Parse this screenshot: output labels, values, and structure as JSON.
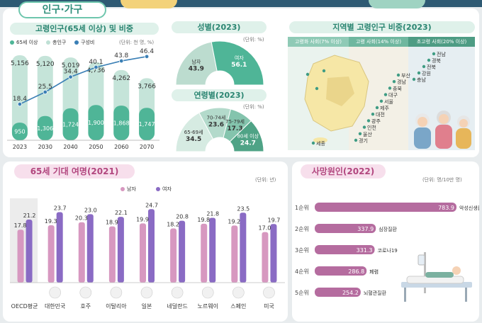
{
  "header": {
    "title": "인구·가구"
  },
  "pop": {
    "title": "고령인구(65세 이상) 및 비중",
    "unit": "(단위: 천 명, %)",
    "legend": [
      "65세 이상",
      "총인구",
      "구성비"
    ],
    "colors": {
      "total": "#bfe0d5",
      "elderly": "#4fb597",
      "line": "#3a7fb5"
    }
  },
  "sex": {
    "title": "성별(2023)",
    "unit": "(단위: %)",
    "male_label": "남자",
    "male": "43.9",
    "female_label": "여자",
    "female": "56.1"
  },
  "age": {
    "title": "연령별(2023)",
    "unit": "(단위: %)",
    "groups": [
      {
        "label": "65-69세",
        "value": "34.5"
      },
      {
        "label": "70-74세",
        "value": "23.6"
      },
      {
        "label": "75-79세",
        "value": "17.3"
      },
      {
        "label": "80세 이상",
        "value": "24.7"
      }
    ]
  },
  "region": {
    "title": "지역별 고령인구 비중(2023)",
    "stages": [
      "고령화 사회(7% 이상)",
      "고령 사회(14% 이상)",
      "초고령 사회(20% 이상)"
    ],
    "aging": [
      "세종"
    ],
    "aged": [
      "경기",
      "울산",
      "인천",
      "광주",
      "대전",
      "제주",
      "서울",
      "대구",
      "충북",
      "경남",
      "부산"
    ],
    "super_aged": [
      "충남",
      "강원",
      "전북",
      "경북",
      "전남"
    ]
  },
  "life": {
    "title": "65세 기대 여명(2021)",
    "unit": "(단위: 년)",
    "legend": [
      "남자",
      "여자"
    ]
  },
  "death": {
    "title": "사망원인(2022)",
    "unit": "(단위: 명/10만 명)",
    "ranks": [
      {
        "rank": "1순위",
        "value": "783.9",
        "name": "악성신생물(암)"
      },
      {
        "rank": "2순위",
        "value": "337.9",
        "name": "심장질환"
      },
      {
        "rank": "3순위",
        "value": "331.3",
        "name": "코로나19"
      },
      {
        "rank": "4순위",
        "value": "286.8",
        "name": "폐렴"
      },
      {
        "rank": "5순위",
        "value": "254.2",
        "name": "뇌혈관질환"
      }
    ]
  },
  "chart_data": [
    {
      "type": "bar",
      "title": "고령인구(65세 이상) 및 비중",
      "categories": [
        "2023",
        "2030",
        "2040",
        "2050",
        "2060",
        "2070"
      ],
      "series": [
        {
          "name": "총인구",
          "values": [
            51558,
            51199,
            50193,
            47359,
            42617,
            37656
          ]
        },
        {
          "name": "65세 이상",
          "values": [
            950,
            1306,
            1724,
            1900,
            1868,
            1747
          ]
        },
        {
          "name": "구성비",
          "values": [
            18.4,
            25.5,
            34.4,
            40.1,
            43.8,
            46.4
          ]
        }
      ],
      "top_labels": [
        "5,156",
        "5,120",
        "5,019",
        "4,736",
        "4,262",
        "3,766"
      ],
      "elderly_labels": [
        "950",
        "1,306",
        "1,724",
        "1,900",
        "1,868",
        "1,747"
      ],
      "pct_labels": [
        "18.4",
        "25.5",
        "34.4",
        "40.1",
        "43.8",
        "46.4"
      ]
    },
    {
      "type": "pie",
      "title": "성별(2023)",
      "categories": [
        "남자",
        "여자"
      ],
      "values": [
        43.9,
        56.1
      ]
    },
    {
      "type": "pie",
      "title": "연령별(2023)",
      "categories": [
        "65-69세",
        "70-74세",
        "75-79세",
        "80세 이상"
      ],
      "values": [
        34.5,
        23.6,
        17.3,
        24.7
      ]
    },
    {
      "type": "bar",
      "title": "65세 기대 여명(2021)",
      "categories": [
        "OECD평균",
        "대한민국",
        "호주",
        "이탈리아",
        "일본",
        "네덜란드",
        "노르웨이",
        "스페인",
        "미국"
      ],
      "series": [
        {
          "name": "남자",
          "values": [
            17.8,
            19.3,
            20.3,
            18.9,
            19.9,
            18.2,
            19.8,
            19.2,
            17.0
          ]
        },
        {
          "name": "여자",
          "values": [
            21.2,
            23.7,
            23.0,
            22.1,
            24.7,
            20.8,
            21.8,
            23.5,
            19.7
          ]
        }
      ]
    },
    {
      "type": "bar",
      "title": "사망원인(2022)",
      "categories": [
        "악성신생물(암)",
        "심장질환",
        "코로나19",
        "폐렴",
        "뇌혈관질환"
      ],
      "values": [
        783.9,
        337.9,
        331.3,
        286.8,
        254.2
      ]
    }
  ]
}
